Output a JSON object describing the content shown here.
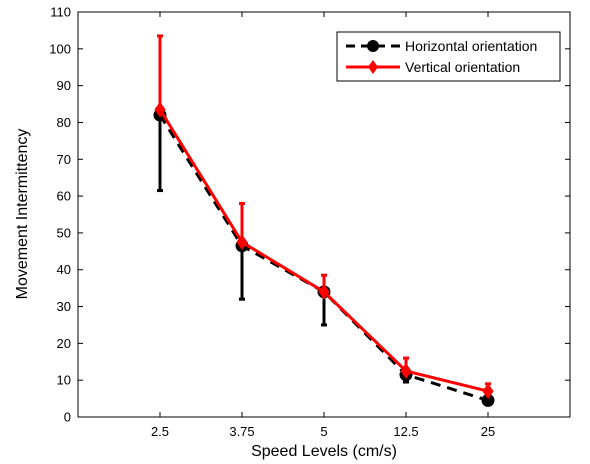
{
  "chart_data": {
    "type": "line",
    "title": "",
    "xlabel": "Speed Levels (cm/s)",
    "ylabel": "Movement Intermittency",
    "categories": [
      "2.5",
      "3.75",
      "5",
      "12.5",
      "25"
    ],
    "x_range": [
      0,
      6
    ],
    "ylim": [
      0,
      110
    ],
    "y_ticks": [
      "0",
      "10",
      "20",
      "30",
      "40",
      "50",
      "60",
      "70",
      "80",
      "90",
      "100",
      "110"
    ],
    "grid": false,
    "legend_position": "top-right",
    "series": [
      {
        "name": "Horizontal orientation",
        "color": "#000000",
        "line_style": "dashed",
        "marker": "circle",
        "values": [
          82,
          46.5,
          34,
          11.5,
          4.5
        ],
        "error_minus": [
          20.5,
          14.5,
          9,
          2,
          0
        ],
        "error_plus": [
          0,
          0,
          0,
          0,
          0
        ]
      },
      {
        "name": "Vertical orientation",
        "color": "#ff0000",
        "line_style": "solid",
        "marker": "diamond",
        "values": [
          83.5,
          47.5,
          34,
          12.5,
          7
        ],
        "error_minus": [
          0,
          0,
          0,
          0,
          0
        ],
        "error_plus": [
          20,
          10.5,
          4.5,
          3.5,
          2
        ]
      }
    ]
  }
}
